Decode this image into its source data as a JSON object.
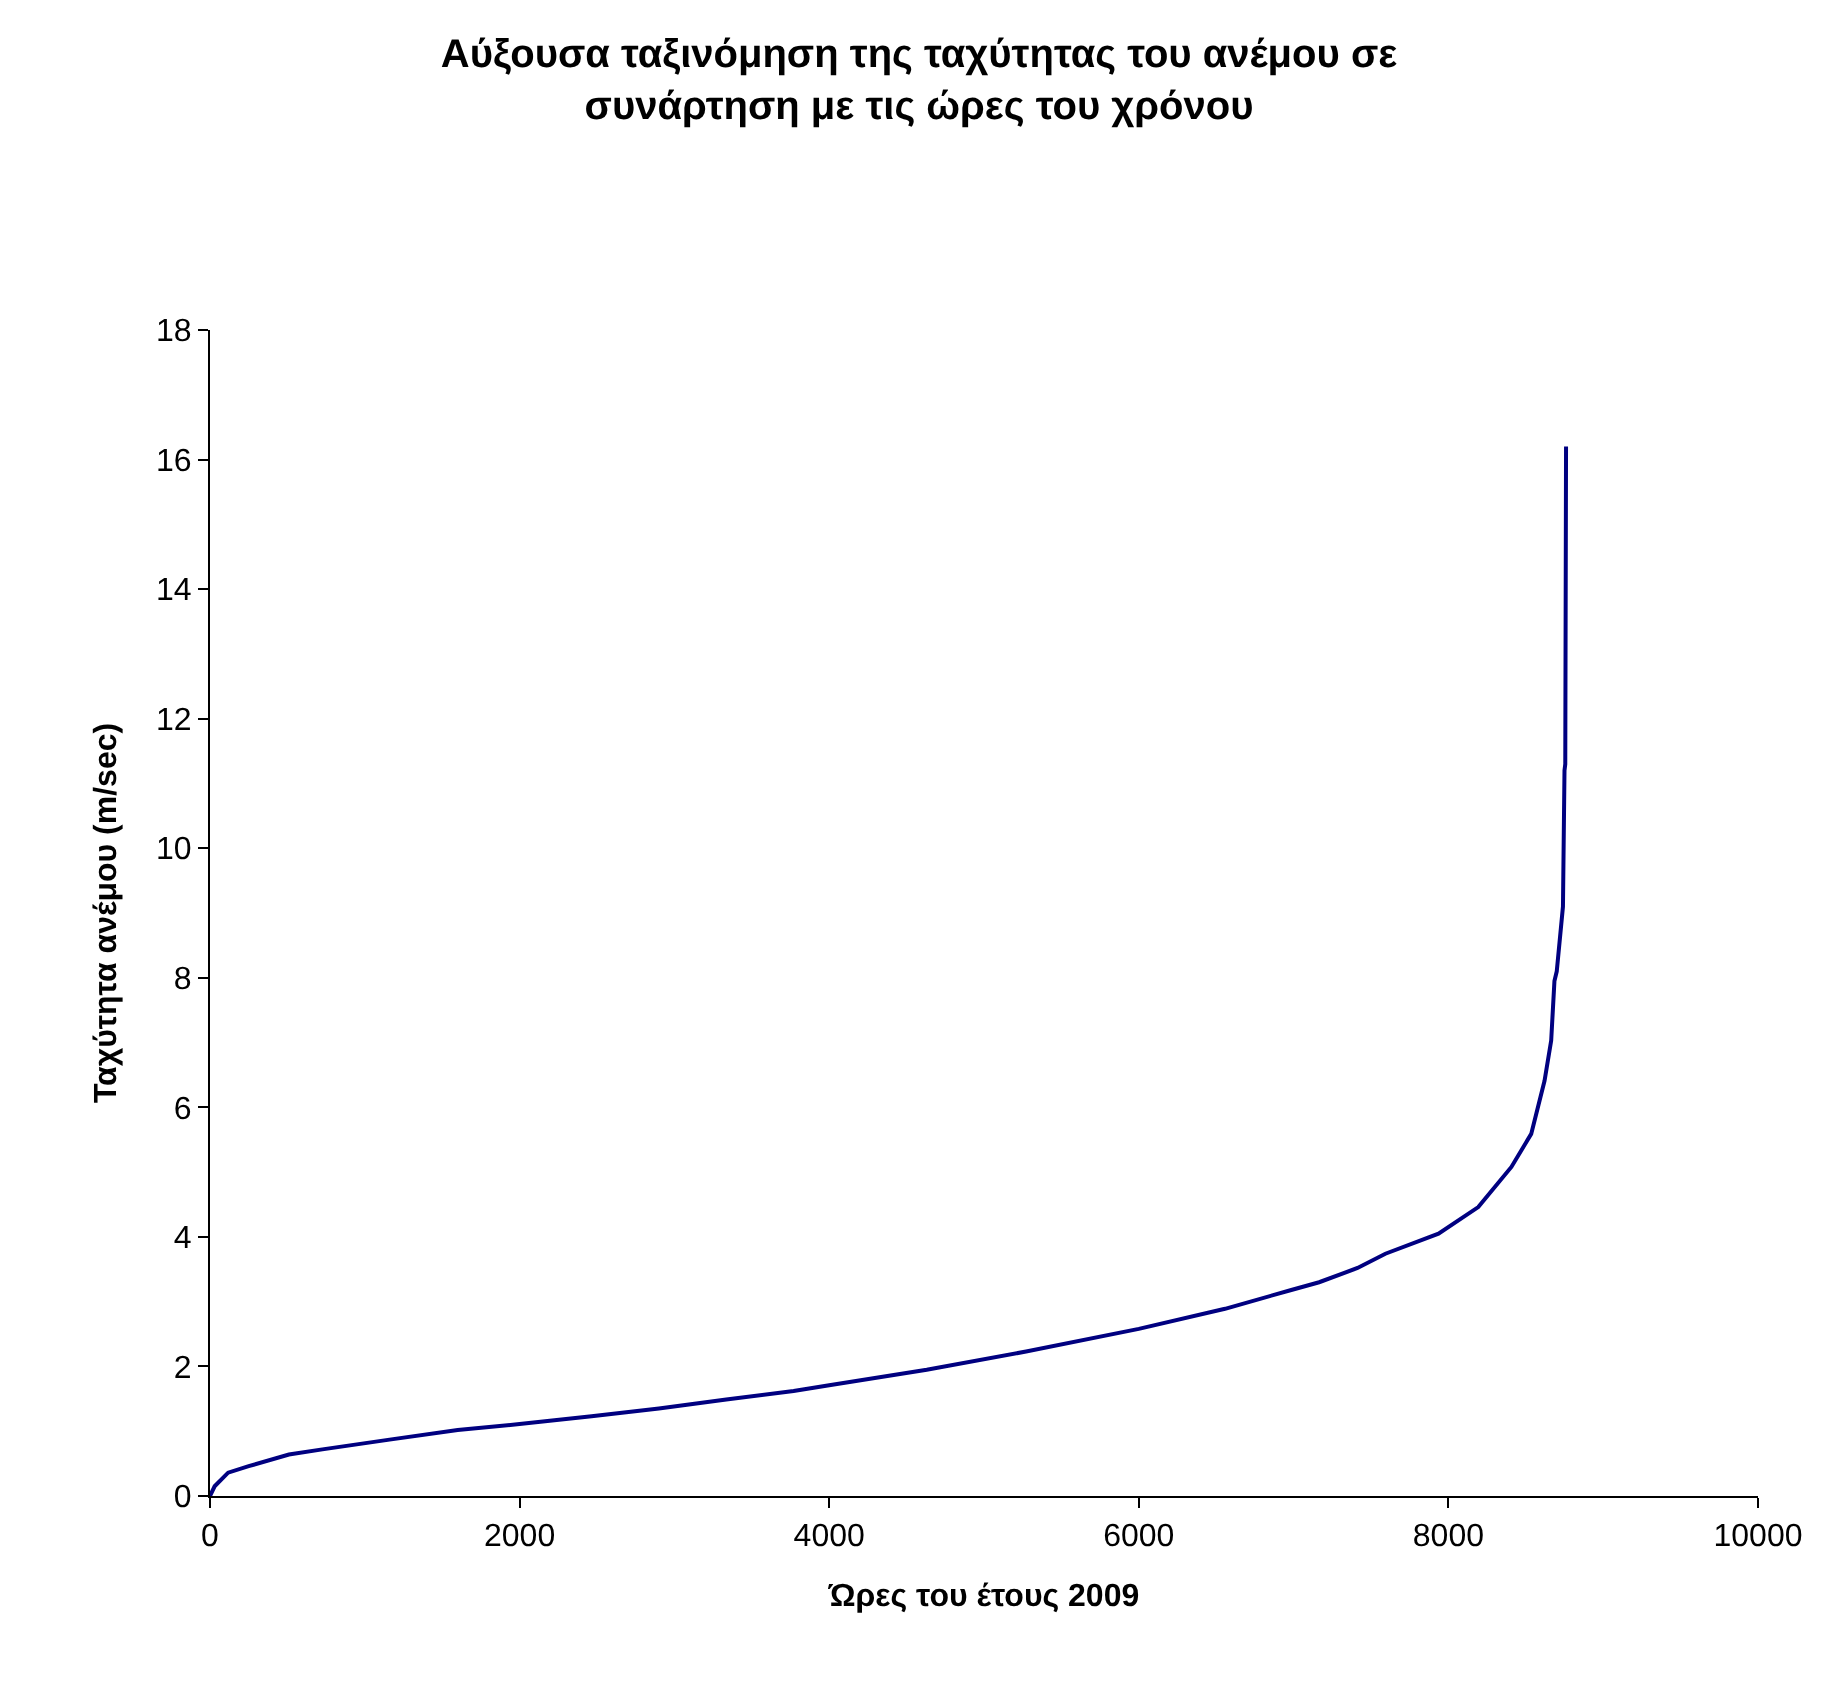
{
  "chart_data": {
    "type": "line",
    "title": "Αύξουσα ταξινόμηση της ταχύτητας του ανέμου σε συνάρτηση με τις ώρες του χρόνου",
    "xlabel": "Ώρες του έτους 2009",
    "ylabel": "Ταχύτητα ανέμου (m/sec)",
    "series": [
      {
        "color": "#000080",
        "x": [
          0,
          30,
          117,
          250,
          510,
          726,
          1160,
          1600,
          2000,
          2465,
          2900,
          3335,
          3770,
          4000,
          4630,
          5272,
          6000,
          6557,
          6985,
          7165,
          7413,
          7593,
          7936,
          8193,
          8407,
          8535,
          8621,
          8664,
          8685,
          8700,
          8740,
          8750,
          8755,
          8760
        ],
        "values": [
          0,
          0.15,
          0.36,
          0.46,
          0.64,
          0.72,
          0.87,
          1.02,
          1.11,
          1.23,
          1.35,
          1.49,
          1.62,
          1.71,
          1.95,
          2.23,
          2.58,
          2.89,
          3.18,
          3.3,
          3.52,
          3.74,
          4.05,
          4.46,
          5.08,
          5.59,
          6.41,
          7.03,
          7.95,
          8.1,
          9.1,
          11.2,
          11.3,
          16.2
        ]
      }
    ],
    "xlim": [
      0,
      10000
    ],
    "xticks": [
      0,
      2000,
      4000,
      6000,
      8000,
      10000
    ],
    "ylim": [
      0,
      18
    ],
    "yticks": [
      0,
      2,
      4,
      6,
      8,
      10,
      12,
      14,
      16,
      18
    ],
    "marker": "none",
    "line_style": "solid"
  }
}
